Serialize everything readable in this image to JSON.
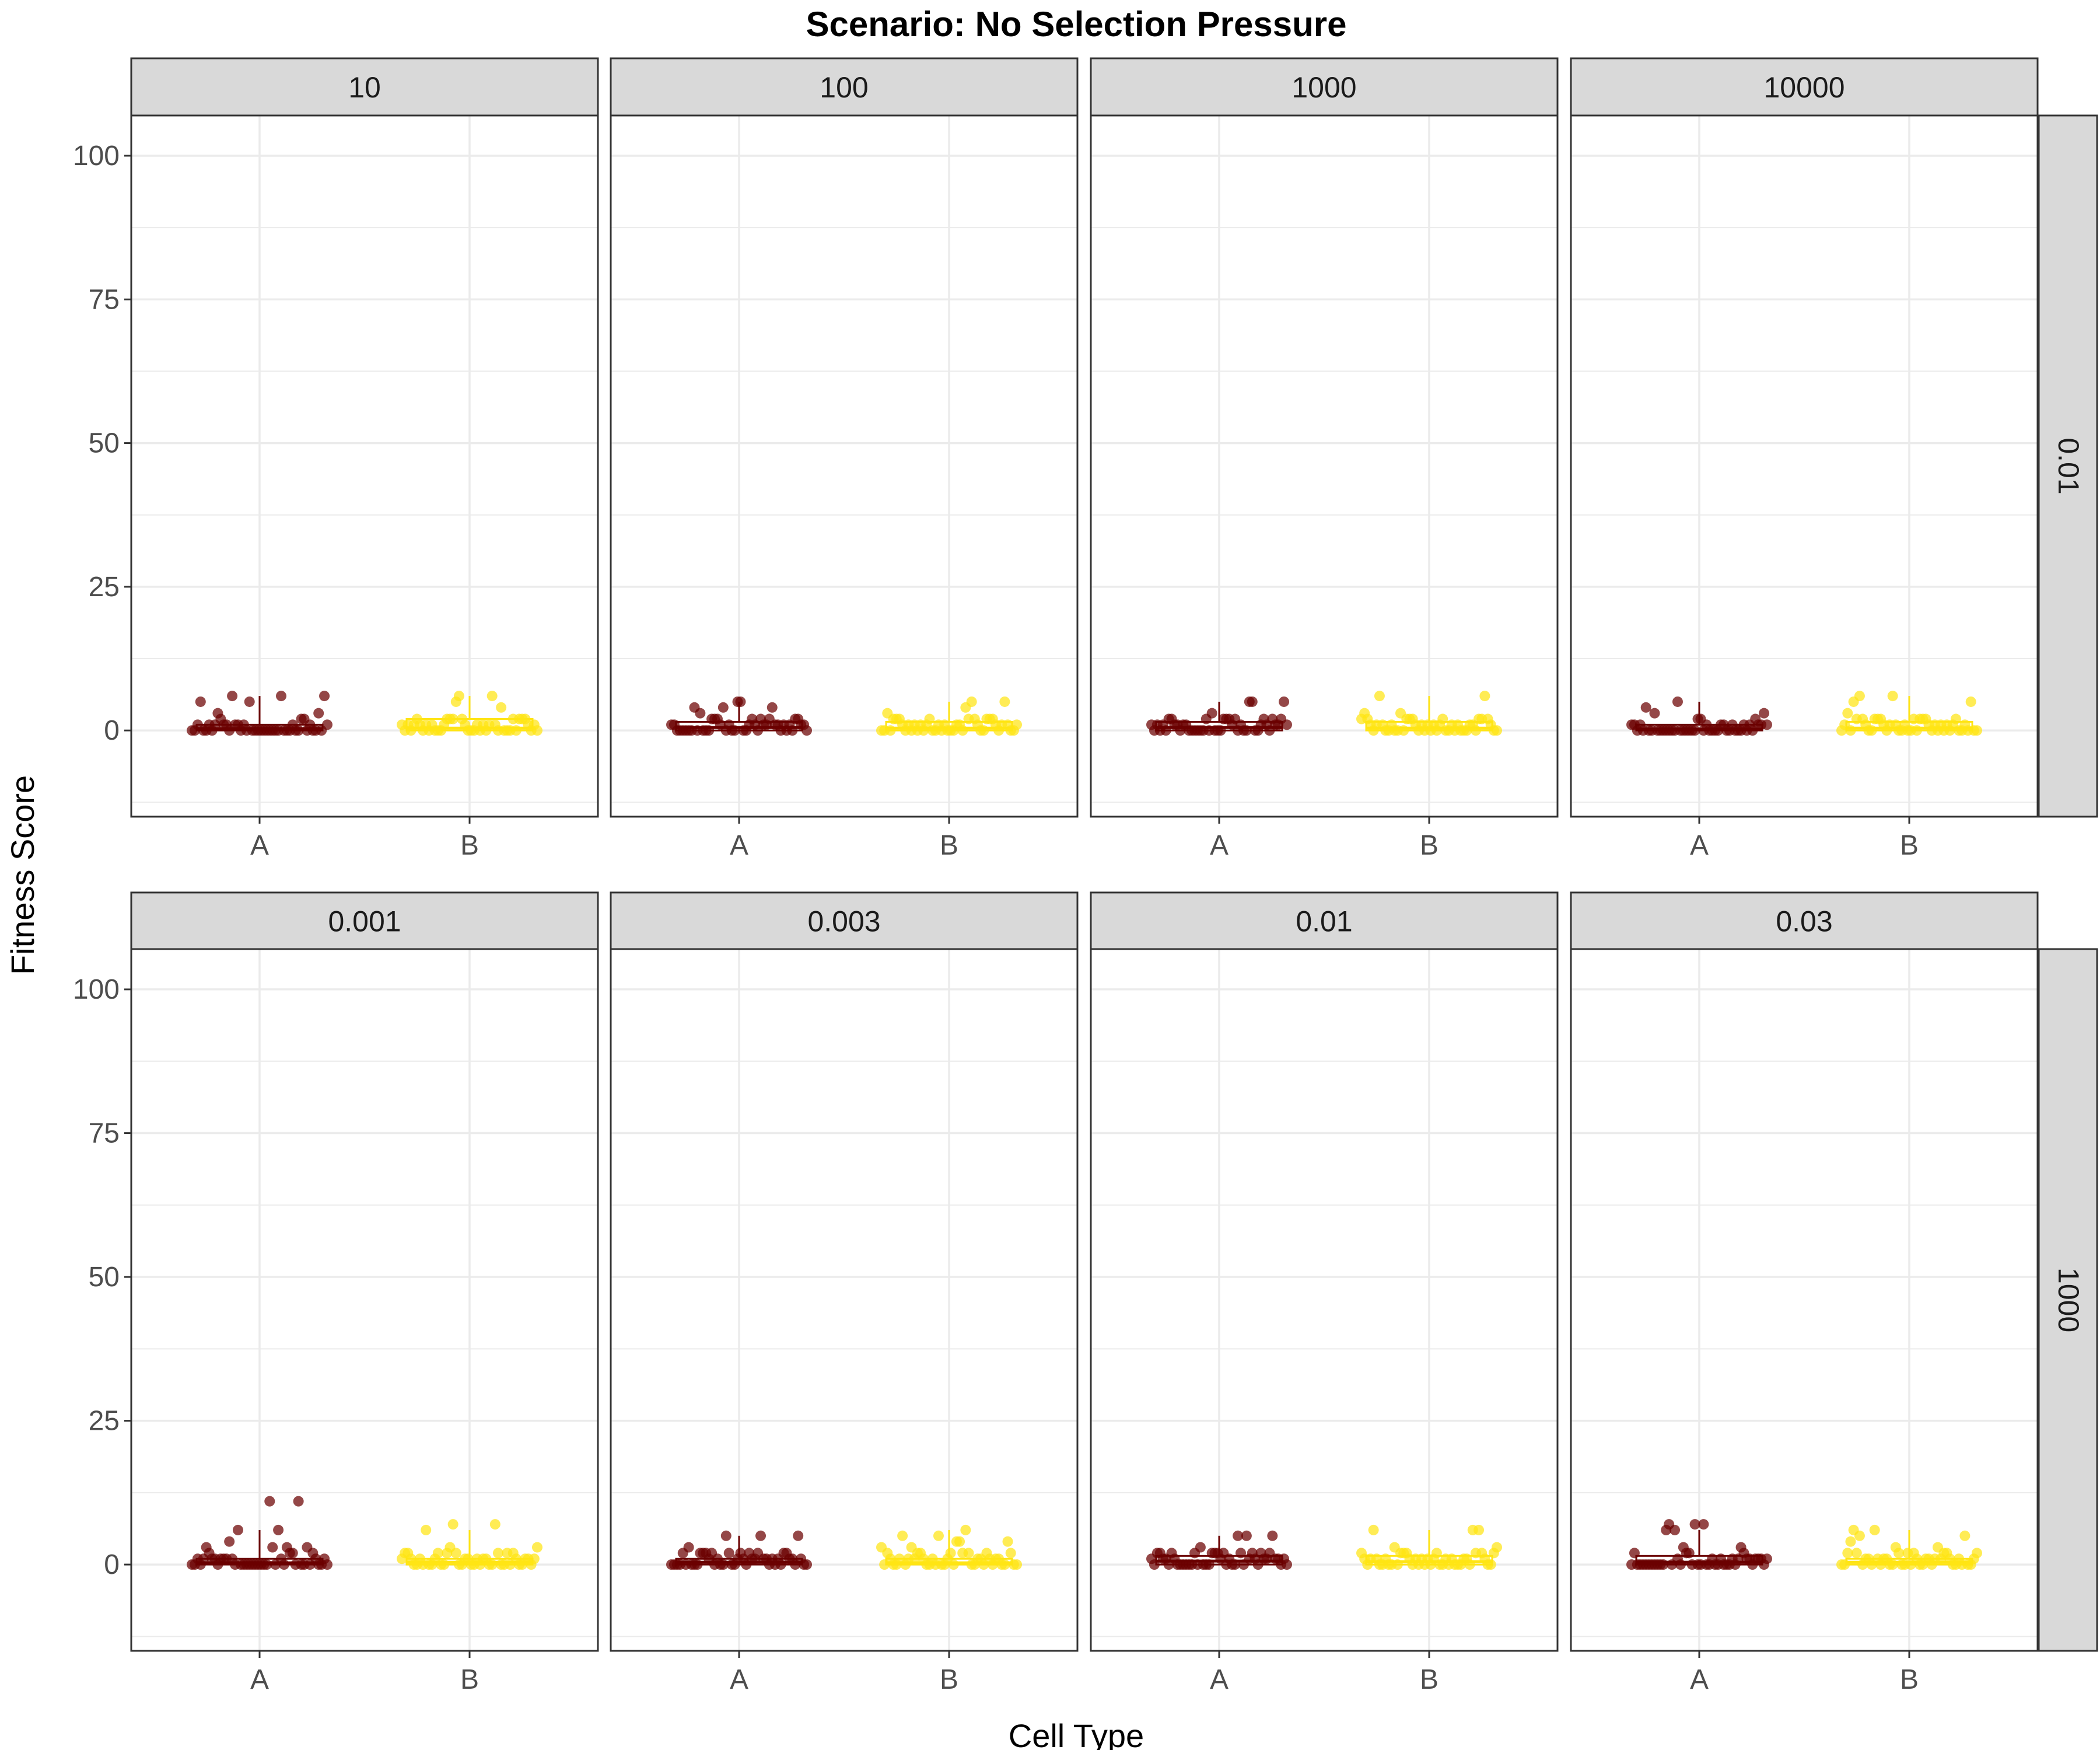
{
  "chart_data": {
    "type": "scatter",
    "title": "Scenario: No Selection Pressure",
    "xlabel": "Cell Type",
    "ylabel": "Fitness Score",
    "categories": [
      "A",
      "B"
    ],
    "yticks": [
      0,
      25,
      50,
      75,
      100
    ],
    "ylim": [
      -15,
      107
    ],
    "grid": true,
    "legend": "none",
    "colors": {
      "A": "#6b0000",
      "B": "#ffe414",
      "strip_bg": "#d9d9d9",
      "grid": "#ebebeb"
    },
    "row_labels": [
      "0.01",
      "1000"
    ],
    "panels": [
      {
        "col_label": "10",
        "row": 0,
        "col": 0,
        "A": {
          "median": 0.3,
          "q3": 1,
          "points": [
            0,
            0,
            0,
            1,
            0,
            1,
            0,
            0,
            1,
            0,
            0,
            0,
            1,
            0,
            2,
            0,
            1,
            0,
            0,
            6,
            5,
            3,
            6,
            1,
            0,
            0,
            1,
            2,
            0,
            0,
            1,
            0,
            0,
            0,
            2,
            1,
            0,
            0,
            6,
            5,
            0,
            0,
            1,
            0,
            3,
            0,
            0,
            1
          ]
        },
        "B": {
          "median": 0.4,
          "q3": 2,
          "points": [
            0,
            1,
            0,
            0,
            2,
            1,
            0,
            0,
            1,
            5,
            0,
            1,
            2,
            0,
            6,
            1,
            0,
            0,
            1,
            2,
            0,
            1,
            2,
            6,
            1,
            0,
            0,
            2,
            1,
            0,
            0,
            1,
            2,
            0,
            0,
            1,
            2,
            1,
            4,
            0,
            2,
            1,
            0,
            0,
            1,
            2
          ]
        }
      },
      {
        "col_label": "100",
        "row": 0,
        "col": 1,
        "A": {
          "median": 0.5,
          "q3": 1.5,
          "points": [
            0,
            1,
            1,
            0,
            2,
            0,
            1,
            0,
            0,
            4,
            1,
            2,
            5,
            0,
            1,
            0,
            1,
            2,
            0,
            0,
            2,
            1,
            0,
            1,
            4,
            5,
            0,
            0,
            1,
            2,
            1,
            0,
            2,
            1,
            0,
            3,
            0,
            1,
            0,
            2,
            0,
            0,
            1,
            4,
            0,
            2,
            1,
            0
          ]
        },
        "B": {
          "median": 0.4,
          "q3": 1.5,
          "points": [
            0,
            1,
            0,
            2,
            4,
            1,
            0,
            0,
            1,
            2,
            0,
            1,
            3,
            0,
            5,
            1,
            0,
            0,
            1,
            2,
            0,
            1,
            2,
            5,
            1,
            0,
            0,
            2,
            1,
            0,
            0,
            1,
            2,
            0,
            0,
            1,
            2,
            1,
            0,
            2,
            1,
            0,
            0,
            1,
            2,
            0
          ]
        }
      },
      {
        "col_label": "1000",
        "row": 0,
        "col": 2,
        "A": {
          "median": 0.5,
          "q3": 1.5,
          "points": [
            0,
            1,
            1,
            0,
            2,
            0,
            1,
            0,
            0,
            2,
            1,
            2,
            5,
            0,
            1,
            0,
            1,
            2,
            0,
            0,
            2,
            1,
            0,
            1,
            5,
            5,
            0,
            0,
            1,
            2,
            1,
            0,
            2,
            1,
            0,
            3,
            0,
            1,
            0,
            2,
            0,
            0,
            1,
            2,
            0,
            2,
            1,
            0
          ]
        },
        "B": {
          "median": 0.4,
          "q3": 1.5,
          "points": [
            0,
            1,
            0,
            2,
            2,
            1,
            0,
            0,
            1,
            2,
            0,
            1,
            3,
            0,
            6,
            1,
            0,
            0,
            1,
            2,
            0,
            1,
            2,
            6,
            1,
            0,
            0,
            2,
            1,
            0,
            0,
            1,
            2,
            0,
            0,
            1,
            2,
            1,
            0,
            2,
            1,
            0,
            0,
            1,
            3,
            0
          ]
        }
      },
      {
        "col_label": "10000",
        "row": 0,
        "col": 3,
        "A": {
          "median": 0.2,
          "q3": 1,
          "points": [
            0,
            0,
            0,
            1,
            0,
            1,
            0,
            0,
            1,
            0,
            0,
            3,
            1,
            0,
            2,
            0,
            1,
            0,
            0,
            5,
            4,
            0,
            1,
            0,
            0,
            3,
            1,
            2,
            0,
            0,
            1,
            0,
            0,
            0,
            2,
            1,
            0,
            0,
            1,
            0,
            0,
            0,
            1,
            0,
            0,
            0,
            0,
            1
          ]
        },
        "B": {
          "median": 0.4,
          "q3": 1.5,
          "points": [
            0,
            1,
            0,
            2,
            5,
            1,
            0,
            0,
            1,
            2,
            0,
            1,
            2,
            0,
            6,
            5,
            0,
            0,
            1,
            2,
            0,
            1,
            2,
            6,
            1,
            0,
            0,
            2,
            1,
            0,
            0,
            1,
            2,
            0,
            0,
            1,
            2,
            1,
            0,
            2,
            3,
            0,
            0,
            1,
            2,
            0
          ]
        }
      },
      {
        "col_label": "0.001",
        "row": 1,
        "col": 0,
        "A": {
          "median": 0.3,
          "q3": 1,
          "points": [
            0,
            3,
            0,
            1,
            0,
            11,
            0,
            0,
            1,
            0,
            6,
            0,
            1,
            0,
            2,
            0,
            1,
            0,
            0,
            11,
            6,
            3,
            2,
            1,
            0,
            0,
            1,
            2,
            0,
            4,
            1,
            0,
            3,
            0,
            2,
            1,
            0,
            0,
            1,
            0,
            0,
            0,
            1,
            0,
            3,
            0,
            0,
            1
          ]
        },
        "B": {
          "median": 0.4,
          "q3": 1,
          "points": [
            0,
            1,
            0,
            0,
            2,
            1,
            0,
            0,
            1,
            3,
            0,
            1,
            2,
            0,
            7,
            6,
            3,
            0,
            1,
            2,
            0,
            1,
            2,
            1,
            0,
            0,
            2,
            1,
            0,
            0,
            1,
            2,
            0,
            0,
            1,
            2,
            1,
            0,
            7,
            1,
            0,
            0,
            1,
            2,
            0,
            0
          ]
        }
      },
      {
        "col_label": "0.003",
        "row": 1,
        "col": 1,
        "A": {
          "median": 0.4,
          "q3": 1,
          "points": [
            0,
            5,
            1,
            0,
            2,
            0,
            1,
            0,
            0,
            2,
            1,
            2,
            5,
            0,
            1,
            0,
            1,
            2,
            0,
            0,
            2,
            1,
            0,
            1,
            5,
            2,
            0,
            0,
            1,
            2,
            1,
            0,
            2,
            1,
            0,
            3,
            0,
            1,
            0,
            2,
            0,
            0,
            1,
            2,
            0,
            2,
            1,
            0
          ]
        },
        "B": {
          "median": 0.3,
          "q3": 1,
          "points": [
            0,
            5,
            0,
            2,
            4,
            1,
            0,
            0,
            1,
            2,
            0,
            1,
            3,
            0,
            6,
            5,
            3,
            0,
            1,
            2,
            0,
            1,
            2,
            1,
            0,
            0,
            2,
            1,
            0,
            0,
            1,
            2,
            0,
            0,
            1,
            2,
            1,
            0,
            4,
            1,
            0,
            0,
            1,
            2,
            0,
            4
          ]
        }
      },
      {
        "col_label": "0.01",
        "row": 1,
        "col": 2,
        "A": {
          "median": 0.6,
          "q3": 1.5,
          "points": [
            0,
            2,
            1,
            5,
            2,
            0,
            1,
            0,
            0,
            2,
            1,
            2,
            5,
            0,
            1,
            0,
            1,
            2,
            0,
            0,
            2,
            1,
            0,
            1,
            5,
            2,
            0,
            0,
            1,
            2,
            1,
            0,
            2,
            1,
            0,
            3,
            0,
            1,
            0,
            2,
            0,
            0,
            1,
            2,
            0,
            2,
            1,
            0
          ]
        },
        "B": {
          "median": 0.5,
          "q3": 1.5,
          "points": [
            0,
            1,
            0,
            2,
            6,
            1,
            0,
            0,
            1,
            2,
            0,
            1,
            3,
            0,
            6,
            1,
            0,
            0,
            1,
            2,
            0,
            1,
            2,
            6,
            1,
            0,
            0,
            2,
            1,
            0,
            0,
            1,
            2,
            0,
            0,
            1,
            2,
            1,
            0,
            2,
            1,
            0,
            0,
            1,
            3,
            0
          ]
        }
      },
      {
        "col_label": "0.03",
        "row": 1,
        "col": 3,
        "A": {
          "median": 0.4,
          "q3": 1.5,
          "points": [
            0,
            3,
            0,
            1,
            0,
            7,
            0,
            0,
            1,
            0,
            6,
            0,
            1,
            0,
            2,
            0,
            1,
            0,
            0,
            6,
            2,
            3,
            0,
            1,
            0,
            0,
            1,
            2,
            0,
            0,
            1,
            0,
            7,
            0,
            2,
            1,
            0,
            0,
            1,
            0,
            0,
            0,
            1,
            0,
            7,
            0,
            0,
            1
          ]
        },
        "B": {
          "median": 0.4,
          "q3": 1,
          "points": [
            0,
            1,
            0,
            6,
            2,
            1,
            0,
            0,
            1,
            4,
            0,
            1,
            2,
            0,
            6,
            5,
            3,
            0,
            1,
            2,
            0,
            1,
            2,
            1,
            5,
            0,
            2,
            1,
            0,
            0,
            1,
            2,
            0,
            0,
            1,
            2,
            1,
            0,
            3,
            1,
            0,
            0,
            1,
            2,
            0,
            0
          ]
        }
      }
    ]
  }
}
